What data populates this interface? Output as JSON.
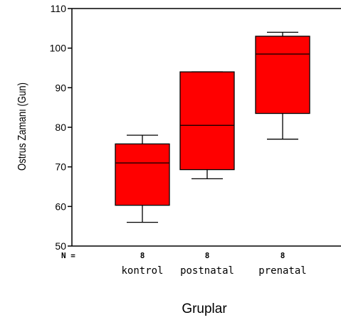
{
  "chart_data": {
    "type": "boxplot",
    "xlabel": "Gruplar",
    "ylabel": "Ostrus Zamanı (Gun)",
    "ylim": [
      50,
      110
    ],
    "yticks": [
      50,
      60,
      70,
      80,
      90,
      100,
      110
    ],
    "n_label": "N =",
    "box_color": "#ff0000",
    "categories": [
      "kontrol",
      "postnatal",
      "prenatal"
    ],
    "n_values": [
      "8",
      "8",
      "8"
    ],
    "boxes": [
      {
        "category": "kontrol",
        "min": 56,
        "q1": 60.3,
        "median": 71,
        "q3": 75.8,
        "max": 78
      },
      {
        "category": "postnatal",
        "min": 67,
        "q1": 69.3,
        "median": 80.5,
        "q3": 94,
        "max": 94
      },
      {
        "category": "prenatal",
        "min": 77,
        "q1": 83.5,
        "median": 98.5,
        "q3": 103,
        "max": 104
      }
    ]
  }
}
